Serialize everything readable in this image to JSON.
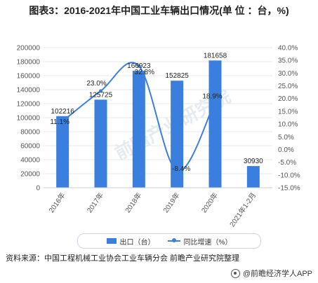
{
  "header": {
    "title": "图表3：2016-2021年中国工业车辆出口情况(单 位 ：台，%)"
  },
  "chart_data": {
    "type": "bar",
    "categories": [
      "2016年",
      "2017年",
      "2018年",
      "2019年",
      "2020年",
      "2021年1-2月"
    ],
    "series": [
      {
        "name": "出口（台）",
        "type": "bar",
        "axis": "left",
        "values": [
          102216,
          125725,
          166923,
          152825,
          181658,
          30930
        ],
        "labels": [
          "102216",
          "125725",
          "166923",
          "152825",
          "181658",
          "30930"
        ]
      },
      {
        "name": "同比增速（%）",
        "type": "line",
        "axis": "right",
        "values": [
          11.1,
          23.0,
          32.8,
          -8.4,
          18.9,
          null
        ],
        "labels": [
          "11.1%",
          "23.0%",
          "32.8%",
          "-8.4%",
          "18.9%",
          ""
        ]
      }
    ],
    "y_left": {
      "min": 0,
      "max": 200000,
      "step": 20000,
      "ticks": [
        "0",
        "20000",
        "40000",
        "60000",
        "80000",
        "100000",
        "120000",
        "140000",
        "160000",
        "180000",
        "200000"
      ]
    },
    "y_right": {
      "min": -15,
      "max": 40,
      "step": 5,
      "ticks": [
        "-15.0%",
        "-10.0%",
        "-5.0%",
        "0.0%",
        "5.0%",
        "10.0%",
        "15.0%",
        "20.0%",
        "25.0%",
        "30.0%",
        "35.0%",
        "40.0%"
      ]
    },
    "colors": {
      "bar": "#3a7fde",
      "line": "#3a7fde",
      "grid": "#e4e8ee",
      "axis_text": "#555555"
    },
    "grid": true,
    "legend_position": "bottom"
  },
  "watermark": {
    "text": "前瞻产业研究院"
  },
  "footer": {
    "source": "资料来源：中国工程机械工业协会工业车辆分会 前瞻产业研究院整理",
    "brand": "@前瞻经济学人APP"
  }
}
